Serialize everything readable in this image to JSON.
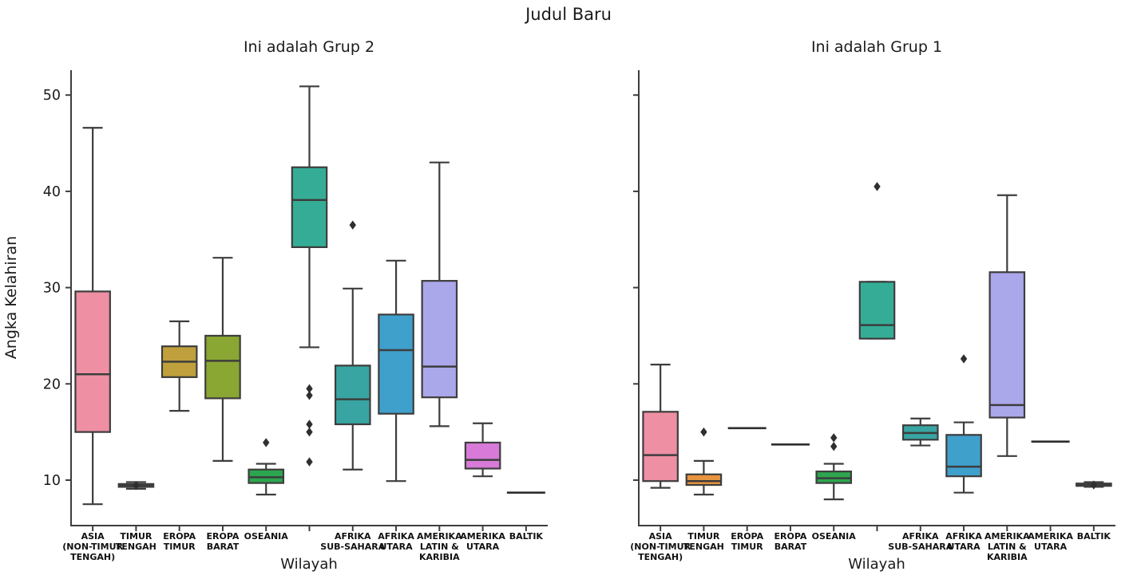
{
  "figure": {
    "title": "Judul Baru",
    "xlabel": "Wilayah",
    "ylabel": "Angka Kelahiran",
    "yticks": [
      10,
      20,
      30,
      40,
      50
    ],
    "ylim": [
      5.3,
      52.6
    ],
    "edge_color": "#3d3d3d",
    "background": "#ffffff",
    "palette": [
      "#ee8fa4",
      "#e8933f",
      "#bfa03c",
      "#8aa633",
      "#2ca64e",
      "#35ad96",
      "#38a5a2",
      "#40a0cc",
      "#aaa7ea",
      "#d77ad8",
      "#888888"
    ]
  },
  "chart_data": [
    {
      "type": "box",
      "title": "Ini adalah Grup 2",
      "xlabel": "Wilayah",
      "ylabel": "Angka Kelahiran",
      "categories": [
        "ASIA (NON-TIMUR TENGAH)",
        "TIMUR TENGAH",
        "EROPA TIMUR",
        "EROPA BARAT",
        "OSEANIA",
        "",
        "AFRIKA SUB-SAHARA",
        "AFRIKA UTARA",
        "AMERIKA LATIN & KARIBIA",
        "AMERIKA UTARA",
        "BALTIK"
      ],
      "category_label_lines": [
        [
          "ASIA",
          "(NON-TIMUR",
          "TENGAH)"
        ],
        [
          "TIMUR",
          "TENGAH"
        ],
        [
          "EROPA",
          "TIMUR"
        ],
        [
          "EROPA",
          "BARAT"
        ],
        [
          "OSEANIA"
        ],
        [],
        [
          "AFRIKA",
          "SUB-SAHARA"
        ],
        [
          "AFRIKA",
          "UTARA"
        ],
        [
          "AMERIKA",
          "LATIN &",
          "KARIBIA"
        ],
        [
          "AMERIKA",
          "UTARA"
        ],
        [
          "BALTIK"
        ]
      ],
      "series": [
        {
          "whislo": 7.5,
          "q1": 15.0,
          "med": 21.0,
          "q3": 29.6,
          "whishi": 46.6,
          "fliers": []
        },
        {
          "whislo": 9.1,
          "q1": 9.3,
          "med": 9.45,
          "q3": 9.6,
          "whishi": 9.8,
          "fliers": [
            9.45
          ]
        },
        {
          "whislo": 17.2,
          "q1": 20.7,
          "med": 22.3,
          "q3": 23.9,
          "whishi": 26.5,
          "fliers": []
        },
        {
          "whislo": 12.0,
          "q1": 18.5,
          "med": 22.4,
          "q3": 25.0,
          "whishi": 33.1,
          "fliers": []
        },
        {
          "whislo": 8.5,
          "q1": 9.7,
          "med": 10.3,
          "q3": 11.1,
          "whishi": 11.7,
          "fliers": [
            13.9
          ]
        },
        {
          "whislo": 23.8,
          "q1": 34.2,
          "med": 39.1,
          "q3": 42.5,
          "whishi": 50.9,
          "fliers": [
            19.5,
            18.8,
            15.8,
            15.0,
            11.9
          ]
        },
        {
          "whislo": 11.1,
          "q1": 15.8,
          "med": 18.4,
          "q3": 21.9,
          "whishi": 29.9,
          "fliers": [
            36.5
          ]
        },
        {
          "whislo": 9.9,
          "q1": 16.9,
          "med": 23.5,
          "q3": 27.2,
          "whishi": 32.8,
          "fliers": []
        },
        {
          "whislo": 15.6,
          "q1": 18.6,
          "med": 21.8,
          "q3": 30.7,
          "whishi": 43.0,
          "fliers": []
        },
        {
          "whislo": 10.4,
          "q1": 11.2,
          "med": 12.1,
          "q3": 13.9,
          "whishi": 15.9,
          "fliers": []
        },
        {
          "flat": 8.7
        }
      ]
    },
    {
      "type": "box",
      "title": "Ini adalah Grup 1",
      "xlabel": "Wilayah",
      "ylabel": "",
      "categories": [
        "ASIA (NON-TIMUR TENGAH)",
        "TIMUR TENGAH",
        "EROPA TIMUR",
        "EROPA BARAT",
        "OSEANIA",
        "",
        "AFRIKA SUB-SAHARA",
        "AFRIKA UTARA",
        "AMERIKA LATIN & KARIBIA",
        "AMERIKA UTARA",
        "BALTIK"
      ],
      "category_label_lines": [
        [
          "ASIA",
          "(NON-TIMUR",
          "TENGAH)"
        ],
        [
          "TIMUR",
          "TENGAH"
        ],
        [
          "EROPA",
          "TIMUR"
        ],
        [
          "EROPA",
          "BARAT"
        ],
        [
          "OSEANIA"
        ],
        [],
        [
          "AFRIKA",
          "SUB-SAHARA"
        ],
        [
          "AFRIKA",
          "UTARA"
        ],
        [
          "AMERIKA",
          "LATIN &",
          "KARIBIA"
        ],
        [
          "AMERIKA",
          "UTARA"
        ],
        [
          "BALTIK"
        ]
      ],
      "series": [
        {
          "whislo": 9.2,
          "q1": 9.9,
          "med": 12.6,
          "q3": 17.1,
          "whishi": 22.0,
          "fliers": []
        },
        {
          "whislo": 8.5,
          "q1": 9.5,
          "med": 9.9,
          "q3": 10.6,
          "whishi": 12.0,
          "fliers": [
            15.0
          ]
        },
        {
          "flat": 15.4
        },
        {
          "flat": 13.7
        },
        {
          "whislo": 8.0,
          "q1": 9.7,
          "med": 10.2,
          "q3": 10.9,
          "whishi": 11.7,
          "fliers": [
            14.4,
            13.5
          ]
        },
        {
          "whislo": 24.7,
          "q1": 24.7,
          "med": 26.1,
          "q3": 30.6,
          "whishi": 30.6,
          "fliers": [
            40.5
          ]
        },
        {
          "whislo": 13.6,
          "q1": 14.2,
          "med": 14.9,
          "q3": 15.7,
          "whishi": 16.4,
          "fliers": []
        },
        {
          "whislo": 8.7,
          "q1": 10.4,
          "med": 11.4,
          "q3": 14.7,
          "whishi": 16.0,
          "fliers": [
            22.6
          ]
        },
        {
          "whislo": 12.5,
          "q1": 16.5,
          "med": 17.8,
          "q3": 31.6,
          "whishi": 39.6,
          "fliers": []
        },
        {
          "flat": 14.0
        },
        {
          "whislo": 9.3,
          "q1": 9.4,
          "med": 9.5,
          "q3": 9.65,
          "whishi": 9.8,
          "fliers": [
            9.5
          ]
        }
      ]
    }
  ]
}
